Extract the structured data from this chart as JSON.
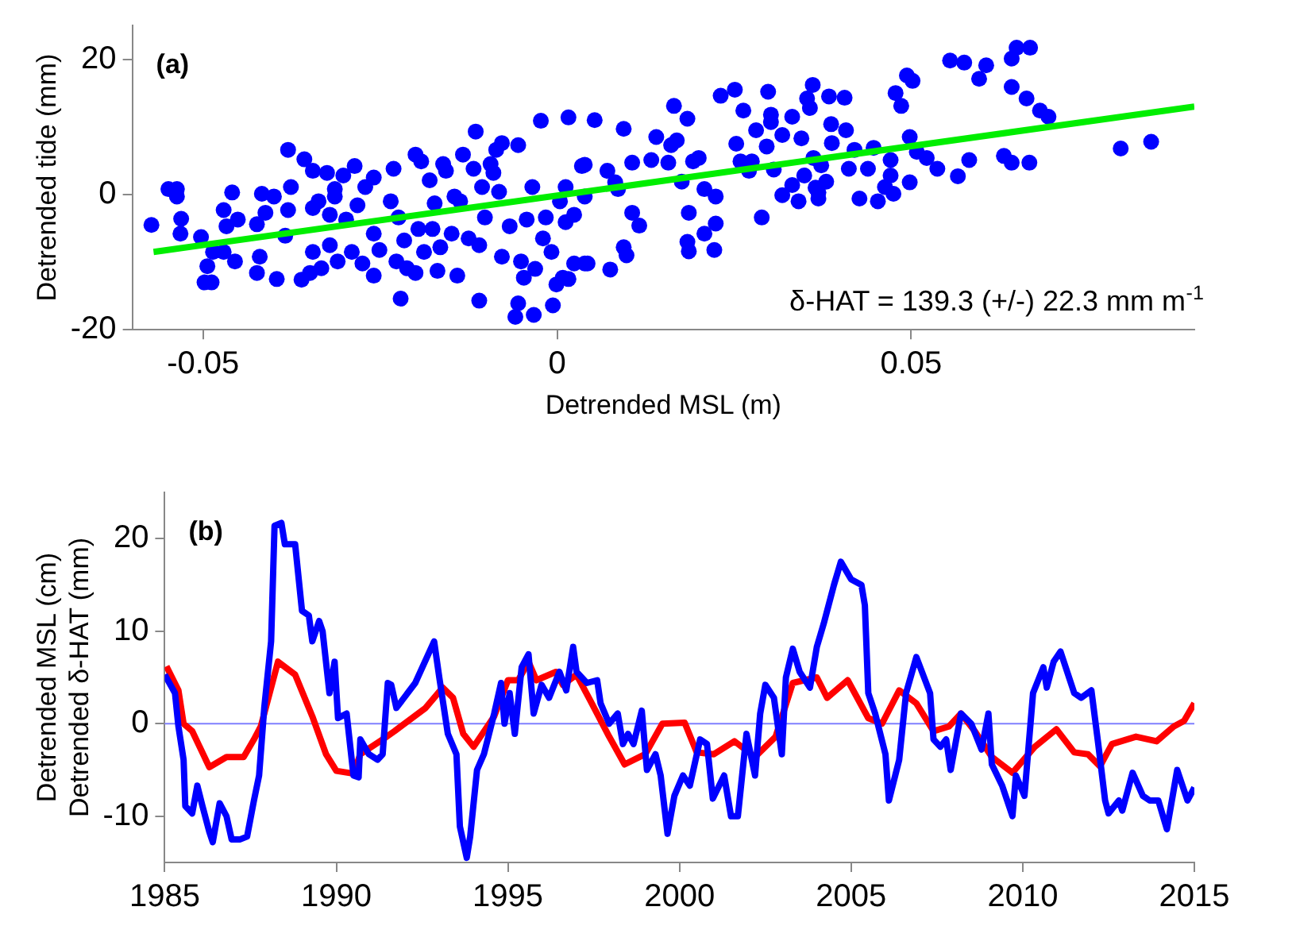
{
  "chart_data": [
    {
      "type": "scatter",
      "xlabel": "Detrended MSL (m)",
      "ylabel": "Detrended tide (mm)",
      "xlim": [
        -0.06,
        0.09
      ],
      "ylim": [
        -20,
        25
      ],
      "xticks": [
        {
          "value": -0.05,
          "label": "-0.05"
        },
        0,
        {
          "value": 0.05,
          "label": "0.05"
        }
      ],
      "yticks": [
        -20,
        0,
        20
      ],
      "annotations": [
        "(a)",
        "δ-HAT = 139.3 (+/-) 22.3 mm m$^{-1}$"
      ],
      "series": [
        {
          "color": "#0000ff",
          "marker": "circle",
          "x": [
            -0.0573,
            -0.0549,
            -0.0537,
            -0.0537,
            -0.0531,
            -0.0532,
            -0.0503,
            -0.0498,
            -0.0488,
            -0.0494,
            -0.0486,
            -0.0471,
            -0.0467,
            -0.0471,
            -0.0459,
            -0.0455,
            -0.0451,
            -0.0424,
            -0.0424,
            -0.042,
            -0.0417,
            -0.0412,
            -0.0396,
            -0.04,
            -0.038,
            -0.0376,
            -0.038,
            -0.0384,
            -0.0357,
            -0.0361,
            -0.0349,
            -0.0345,
            -0.0345,
            -0.0345,
            -0.0337,
            -0.0333,
            -0.0325,
            -0.0321,
            -0.0314,
            -0.0314,
            -0.0321,
            -0.031,
            -0.0302,
            -0.0298,
            -0.029,
            -0.0286,
            -0.0282,
            -0.0275,
            -0.0271,
            -0.0259,
            -0.0259,
            -0.0259,
            -0.0251,
            -0.0235,
            -0.0231,
            -0.0227,
            -0.0224,
            -0.0221,
            -0.0216,
            -0.0212,
            -0.02,
            -0.02,
            -0.0196,
            -0.0192,
            -0.0188,
            -0.018,
            -0.0176,
            -0.0173,
            -0.0169,
            -0.0165,
            -0.0161,
            -0.0157,
            -0.0149,
            -0.0145,
            -0.0141,
            -0.0137,
            -0.0133,
            -0.0125,
            -0.0118,
            -0.0115,
            -0.011,
            -0.011,
            -0.0106,
            -0.0102,
            -0.0094,
            -0.009,
            -0.0086,
            -0.0078,
            -0.0082,
            -0.0078,
            -0.0067,
            -0.0059,
            -0.0055,
            -0.0055,
            -0.0051,
            -0.0047,
            -0.0043,
            -0.0035,
            -0.0033,
            -0.0031,
            -0.0023,
            -0.002,
            -0.0016,
            -0.0008,
            -0.0006,
            -0.0001,
            0.0004,
            0.0008,
            0.0012,
            0.0016,
            0.0024,
            0.0035,
            0.0039,
            0.0043,
            0.0053,
            0.0039,
            0.0071,
            0.0082,
            0.0086,
            0.0094,
            0.0106,
            0.0106,
            0.0116,
            0.0094,
            0.0098,
            0.0075,
            0.0039,
            0.0016,
            0.0012,
            0.0024,
            0.0133,
            0.014,
            0.0157,
            0.0161,
            0.0169,
            0.0165,
            0.0184,
            0.0176,
            0.0186,
            0.0184,
            0.0186,
            0.0192,
            0.02,
            0.0208,
            0.0224,
            0.0208,
            0.0224,
            0.0222,
            0.0231,
            0.0251,
            0.0263,
            0.0253,
            0.0259,
            0.0271,
            0.0275,
            0.0281,
            0.0289,
            0.0298,
            0.0302,
            0.0302,
            0.0296,
            0.0306,
            0.0318,
            0.0318,
            0.0332,
            0.0332,
            0.0341,
            0.0345,
            0.0349,
            0.0353,
            0.0357,
            0.0361,
            0.0362,
            0.0365,
            0.0369,
            0.0373,
            0.0369,
            0.038,
            0.0384,
            0.0387,
            0.0388,
            0.0408,
            0.0406,
            0.0412,
            0.042,
            0.0427,
            0.0439,
            0.0447,
            0.0453,
            0.0463,
            0.0471,
            0.0471,
            0.0475,
            0.0478,
            0.0486,
            0.0494,
            0.0502,
            0.0498,
            0.0498,
            0.0508,
            0.0522,
            0.0537,
            0.0555,
            0.0575,
            0.0566,
            0.0582,
            0.0596,
            0.0606,
            0.0631,
            0.0642,
            0.0667,
            0.0642,
            0.0649,
            0.0668,
            0.0642,
            0.0663,
            0.0682,
            0.0694,
            0.0796,
            0.0839
          ],
          "values": [
            -4.5,
            0.8,
            0.8,
            -0.3,
            -3.6,
            -5.8,
            -6.3,
            -13,
            -13,
            -10.6,
            -8.5,
            -8.5,
            -4.7,
            -2.3,
            0.3,
            -9.9,
            -3.7,
            -11.6,
            -4.4,
            -9.2,
            0.1,
            -2.7,
            -12.5,
            -0.3,
            6.6,
            1.1,
            -2.3,
            -6.1,
            5.2,
            -12.6,
            -11.6,
            3.5,
            -2,
            -8.5,
            -1,
            -10.9,
            3.2,
            -3,
            0.8,
            -0.3,
            -7.5,
            -9.9,
            2.8,
            -3.7,
            -8.5,
            4.2,
            -1.6,
            -10.2,
            1.1,
            2.5,
            -12,
            -5.8,
            -8.2,
            -1,
            3.8,
            -9.9,
            -3.4,
            -15.4,
            -6.8,
            -10.9,
            -11.6,
            5.9,
            -5.1,
            4.9,
            -8.5,
            2.1,
            -5.1,
            -1.3,
            -11.3,
            -7.8,
            4.5,
            3.5,
            -5.8,
            -0.3,
            -12,
            -1,
            5.9,
            -6.5,
            3.8,
            9.3,
            -15.7,
            -7.5,
            1.1,
            -3.4,
            4.5,
            3.2,
            6.6,
            7.6,
            0.4,
            -9.2,
            -4.7,
            -18.1,
            7.3,
            -16.1,
            -9.9,
            -12.3,
            -3.7,
            1.1,
            -17.8,
            -11,
            10.9,
            -6.5,
            -3.4,
            -8.5,
            -16.4,
            -13.3,
            -1,
            -12.3,
            1.1,
            11.4,
            -10.2,
            4.2,
            -0.3,
            -10.2,
            11,
            4.4,
            3.5,
            1.8,
            0.8,
            9.7,
            4.7,
            -2.7,
            -4.6,
            -7.8,
            -9,
            -11.1,
            -10.2,
            -12.5,
            -4.1,
            -3,
            5.1,
            8.5,
            4.7,
            7.3,
            8,
            13.1,
            11.2,
            1.9,
            -2.7,
            -7,
            -8.4,
            4.9,
            5.4,
            0.8,
            -0.3,
            -5.8,
            -4.3,
            -8.2,
            14.6,
            15.5,
            12.4,
            7.5,
            4.9,
            3.5,
            4.9,
            9.5,
            -3.4,
            15.2,
            11.8,
            10.7,
            7.1,
            3.7,
            8.8,
            -0.1,
            11.5,
            1.4,
            -1,
            8.3,
            2.8,
            14.2,
            12.8,
            16.2,
            5.4,
            1,
            0.3,
            4.3,
            -0.6,
            1.9,
            14.5,
            10.4,
            7.6,
            9.5,
            14.3,
            3.8,
            6.6,
            -0.6,
            3.8,
            6.9,
            -1,
            1.1,
            5.1,
            2.8,
            0.1,
            15,
            13.1,
            17.6,
            16.8,
            8.5,
            1.8,
            6.3,
            5.4,
            3.8,
            19.8,
            19.5,
            2.7,
            5.1,
            17.1,
            19.1,
            5.7,
            4.7,
            4.7,
            20.1,
            21.7,
            21.7,
            15.9,
            14.2,
            12.4,
            11.5,
            6.8,
            7.8
          ]
        },
        {
          "type": "line",
          "color": "#00ee00",
          "line_style": "solid",
          "x": [
            -0.057,
            0.09
          ],
          "values": [
            -8.5,
            13
          ]
        }
      ]
    },
    {
      "type": "line",
      "ylabel": "Detrended MSL (cm)\nDetrended δ-HAT (mm)",
      "xlim": [
        1985,
        2015
      ],
      "ylim": [
        -15,
        25
      ],
      "xticks": [
        1985,
        1990,
        1995,
        2000,
        2005,
        2010,
        2015
      ],
      "yticks": [
        -10,
        0,
        10,
        20
      ],
      "line_style": "solid",
      "annotations": [
        "(b)"
      ],
      "ref_lines": [
        {
          "axis": "y",
          "value": 0,
          "color": "#7f7fff"
        }
      ],
      "series": [
        {
          "color": "#0000ff",
          "x": [
            1985.0,
            1985.3,
            1985.4,
            1985.55,
            1985.6,
            1985.8,
            1985.95,
            1986.1,
            1986.3,
            1986.4,
            1986.6,
            1986.8,
            1986.95,
            1987.2,
            1987.4,
            1987.6,
            1987.75,
            1987.9,
            1988.1,
            1988.2,
            1988.4,
            1988.5,
            1988.8,
            1989.0,
            1989.2,
            1989.3,
            1989.5,
            1989.6,
            1989.8,
            1989.95,
            1990.05,
            1990.3,
            1990.5,
            1990.65,
            1990.7,
            1990.95,
            1991.2,
            1991.35,
            1991.5,
            1991.6,
            1991.75,
            1992.3,
            1992.85,
            1993.0,
            1993.25,
            1993.5,
            1993.6,
            1993.8,
            1993.9,
            1994.1,
            1994.3,
            1994.6,
            1994.8,
            1994.9,
            1995.05,
            1995.2,
            1995.4,
            1995.6,
            1995.75,
            1995.98,
            1996.2,
            1996.5,
            1996.7,
            1996.9,
            1997.0,
            1997.3,
            1997.6,
            1997.7,
            1997.95,
            1998.2,
            1998.35,
            1998.5,
            1998.66,
            1998.9,
            1999.05,
            1999.3,
            1999.45,
            1999.65,
            1999.85,
            2000.1,
            2000.3,
            2000.6,
            2000.8,
            2000.97,
            2001.3,
            2001.5,
            2001.7,
            2001.95,
            2002.2,
            2002.35,
            2002.5,
            2002.75,
            2002.98,
            2003.1,
            2003.3,
            2003.5,
            2003.8,
            2004.0,
            2004.2,
            2004.5,
            2004.7,
            2005.0,
            2005.3,
            2005.4,
            2005.5,
            2005.7,
            2006.0,
            2006.1,
            2006.4,
            2006.6,
            2006.9,
            2007.3,
            2007.4,
            2007.6,
            2007.77,
            2007.9,
            2008.2,
            2008.5,
            2008.8,
            2009.0,
            2009.1,
            2009.4,
            2009.7,
            2009.8,
            2010.05,
            2010.3,
            2010.6,
            2010.7,
            2010.9,
            2011.1,
            2011.5,
            2011.7,
            2012.0,
            2012.2,
            2012.4,
            2012.5,
            2012.8,
            2012.9,
            2013.2,
            2013.5,
            2013.7,
            2013.95,
            2014.2,
            2014.5,
            2014.8,
            2015.0
          ],
          "values": [
            5.3,
            3.3,
            -0.3,
            -3.9,
            -8.9,
            -9.7,
            -6.7,
            -8.9,
            -11.7,
            -12.8,
            -8.6,
            -10,
            -12.5,
            -12.5,
            -12.2,
            -8.3,
            -5.6,
            1.7,
            8.9,
            21.4,
            21.7,
            19.4,
            19.4,
            12.2,
            11.7,
            8.9,
            11.1,
            10,
            3.3,
            6.7,
            0.6,
            1.1,
            -5.6,
            -5.8,
            -1.7,
            -3.3,
            -3.9,
            -3.3,
            4.4,
            4.2,
            1.7,
            4.4,
            8.9,
            5,
            -1.1,
            -3.3,
            -11.1,
            -14.5,
            -12.2,
            -5,
            -3.3,
            1.1,
            4.4,
            0,
            3.3,
            -1.1,
            6.1,
            7.5,
            1.1,
            4.2,
            2.8,
            5.6,
            3.6,
            8.3,
            5.6,
            4.4,
            4.7,
            2.2,
            0,
            1.1,
            -2.2,
            -1.1,
            -2.2,
            1.4,
            -5,
            -3.3,
            -5.6,
            -11.9,
            -7.8,
            -5.6,
            -6.7,
            -1.7,
            -2.2,
            -8.1,
            -5.6,
            -10,
            -10,
            -1.1,
            -5.6,
            1.1,
            4.2,
            2.8,
            -3.3,
            5,
            8.1,
            5.6,
            3.9,
            8.3,
            10.8,
            15,
            17.5,
            15.6,
            15,
            12.8,
            3.3,
            1.1,
            -3.3,
            -8.3,
            -3.9,
            3.3,
            7.2,
            3.3,
            -1.7,
            -2.5,
            -1.7,
            -5,
            1.1,
            0,
            -2.8,
            1.1,
            -4.4,
            -6.7,
            -10,
            -5.6,
            -7.8,
            3.3,
            6.1,
            3.9,
            6.7,
            7.8,
            3.3,
            2.8,
            3.6,
            -2.2,
            -8.3,
            -9.7,
            -8.3,
            -9.4,
            -5.3,
            -7.8,
            -8.3,
            -8.3,
            -11.4,
            -5,
            -8.3,
            -6.9
          ]
        },
        {
          "color": "#ff0000",
          "x": [
            1985.05,
            1985.4,
            1985.55,
            1985.8,
            1986.3,
            1986.8,
            1987.3,
            1987.6,
            1987.8,
            1988.3,
            1988.8,
            1989.3,
            1989.7,
            1990.0,
            1990.5,
            1990.7,
            1991.35,
            1991.7,
            1992.6,
            1993.1,
            1993.4,
            1993.7,
            1994.0,
            1994.6,
            1995.0,
            1995.3,
            1995.6,
            1995.83,
            1996.4,
            1996.6,
            1997.0,
            1997.4,
            1997.95,
            1998.4,
            1999.0,
            1999.5,
            2000.15,
            2000.5,
            2001.0,
            2001.6,
            2002.2,
            2002.8,
            2003.3,
            2004.0,
            2004.3,
            2004.9,
            2005.5,
            2005.9,
            2006.4,
            2006.9,
            2007.4,
            2007.85,
            2008.2,
            2008.6,
            2009.1,
            2009.7,
            2010.35,
            2010.98,
            2011.5,
            2011.9,
            2012.25,
            2012.6,
            2013.3,
            2013.9,
            2014.4,
            2014.7,
            2015.0
          ],
          "values": [
            6.2,
            3.6,
            0,
            -0.8,
            -4.7,
            -3.6,
            -3.6,
            -1.7,
            -0.3,
            6.7,
            5.3,
            0.8,
            -3.3,
            -5.1,
            -5.4,
            -3.3,
            -1.7,
            -0.8,
            1.7,
            3.9,
            2.8,
            -1.1,
            -2.5,
            0.8,
            4.7,
            4.7,
            6.7,
            4.7,
            5.6,
            4.2,
            5.3,
            2.5,
            -1.4,
            -4.4,
            -3.3,
            0,
            0.1,
            -3.1,
            -3.3,
            -1.9,
            -3.6,
            -1.4,
            4.4,
            5,
            2.8,
            4.7,
            0.6,
            0,
            3.6,
            2.2,
            -0.8,
            -0.3,
            1.1,
            -0.8,
            -3.6,
            -5.3,
            -2.5,
            -0.6,
            -3.1,
            -3.3,
            -4.6,
            -2.2,
            -1.4,
            -1.9,
            -0.3,
            0.3,
            2.2
          ]
        }
      ]
    }
  ]
}
